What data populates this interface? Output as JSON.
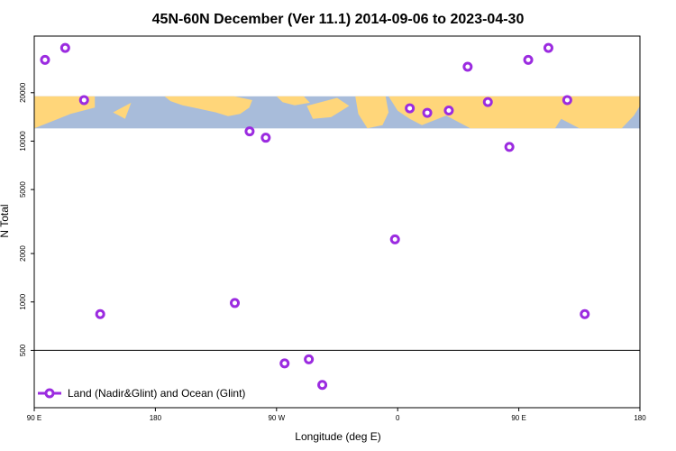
{
  "chart_data": {
    "type": "scatter",
    "title": "45N-60N December (Ver 11.1)   2014-09-06 to 2023-04-30",
    "xlabel": "Longitude (deg E)",
    "ylabel": "N Total",
    "x_ticks": [
      {
        "value": 90,
        "label": "90 E"
      },
      {
        "value": 180,
        "label": "180"
      },
      {
        "value": 270,
        "label": "90 W"
      },
      {
        "value": 360,
        "label": "0"
      },
      {
        "value": 450,
        "label": "90 E"
      },
      {
        "value": 540,
        "label": "180"
      }
    ],
    "y_ticks": [
      {
        "value": 500,
        "label": "500"
      },
      {
        "value": 1000,
        "label": "1000"
      },
      {
        "value": 2000,
        "label": "2000"
      },
      {
        "value": 5000,
        "label": "5000"
      },
      {
        "value": 10000,
        "label": "10000"
      },
      {
        "value": 20000,
        "label": "20000"
      }
    ],
    "xlim": [
      90,
      540
    ],
    "ylim": [
      220,
      45000
    ],
    "y_scale": "log",
    "reference_line_y": 500,
    "background_map": "world map strip (land yellow, ocean blue-gray)",
    "map_band_y": [
      12000,
      19000
    ],
    "legend_position": "bottom-left",
    "series": [
      {
        "name": "Land (Nadir&Glint) and Ocean (Glint)",
        "color": "#9b2be0",
        "marker": "open-circle",
        "points": [
          {
            "x": 98,
            "y": 32000
          },
          {
            "x": 113,
            "y": 38000
          },
          {
            "x": 127,
            "y": 18000
          },
          {
            "x": 139,
            "y": 840
          },
          {
            "x": 239,
            "y": 985
          },
          {
            "x": 250,
            "y": 11500
          },
          {
            "x": 262,
            "y": 10500
          },
          {
            "x": 276,
            "y": 415
          },
          {
            "x": 294,
            "y": 440
          },
          {
            "x": 304,
            "y": 305
          },
          {
            "x": 358,
            "y": 2450
          },
          {
            "x": 369,
            "y": 16000
          },
          {
            "x": 382,
            "y": 15000
          },
          {
            "x": 398,
            "y": 15500
          },
          {
            "x": 412,
            "y": 29000
          },
          {
            "x": 427,
            "y": 17500
          },
          {
            "x": 443,
            "y": 9200
          },
          {
            "x": 457,
            "y": 32000
          },
          {
            "x": 472,
            "y": 38000
          },
          {
            "x": 486,
            "y": 18000
          },
          {
            "x": 499,
            "y": 840
          }
        ]
      }
    ]
  }
}
